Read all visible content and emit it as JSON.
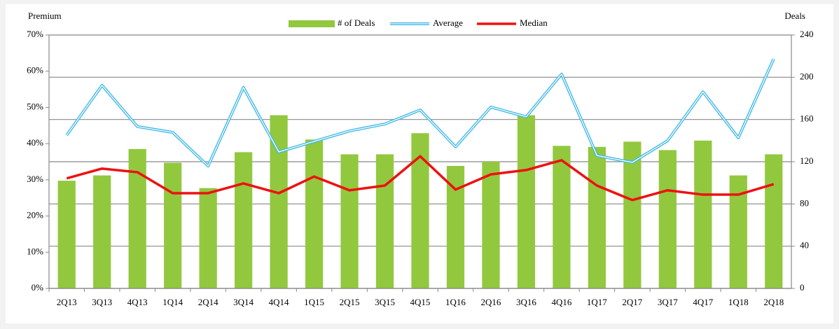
{
  "chart_data": {
    "type": "bar",
    "y_label": "Premium",
    "y2_label": "Deals",
    "categories": [
      "2Q13",
      "3Q13",
      "4Q13",
      "1Q14",
      "2Q14",
      "3Q14",
      "4Q14",
      "1Q15",
      "2Q15",
      "3Q15",
      "4Q15",
      "1Q16",
      "2Q16",
      "3Q16",
      "4Q16",
      "1Q17",
      "2Q17",
      "3Q17",
      "4Q17",
      "1Q18",
      "2Q18"
    ],
    "series": [
      {
        "name": "# of Deals",
        "type": "bar",
        "axis": "y2",
        "color": "#92c83e",
        "values": [
          102,
          107,
          132,
          119,
          95,
          129,
          164,
          141,
          127,
          127,
          147,
          116,
          120,
          164,
          135,
          134,
          139,
          131,
          140,
          107,
          127
        ]
      },
      {
        "name": "Average",
        "type": "line",
        "color": "#3fb8e8",
        "values": [
          42.3,
          56.1,
          44.7,
          43.1,
          33.8,
          55.5,
          37.7,
          40.6,
          43.5,
          45.4,
          49.3,
          39.1,
          50.1,
          47.4,
          59.2,
          36.7,
          34.8,
          40.8,
          54.3,
          41.6,
          63.4
        ]
      },
      {
        "name": "Median",
        "type": "line",
        "color": "#ee1111",
        "values": [
          30.4,
          33.1,
          32.1,
          26.3,
          26.3,
          29.0,
          26.3,
          30.9,
          27.1,
          28.4,
          36.5,
          27.3,
          31.5,
          32.7,
          35.4,
          28.4,
          24.4,
          27.1,
          25.9,
          25.9,
          28.8
        ]
      }
    ],
    "ylim": [
      0,
      70
    ],
    "yticks": [
      {
        "value": 0,
        "label": "0%"
      },
      {
        "value": 10,
        "label": "10%"
      },
      {
        "value": 20,
        "label": "20%"
      },
      {
        "value": 30,
        "label": "30%"
      },
      {
        "value": 40,
        "label": "40%"
      },
      {
        "value": 50,
        "label": "50%"
      },
      {
        "value": 60,
        "label": "60%"
      },
      {
        "value": 70,
        "label": "70%"
      }
    ],
    "y2lim": [
      0,
      240
    ],
    "y2ticks": [
      0,
      40,
      80,
      120,
      160,
      200,
      240
    ],
    "grid": true,
    "legend": "top"
  }
}
